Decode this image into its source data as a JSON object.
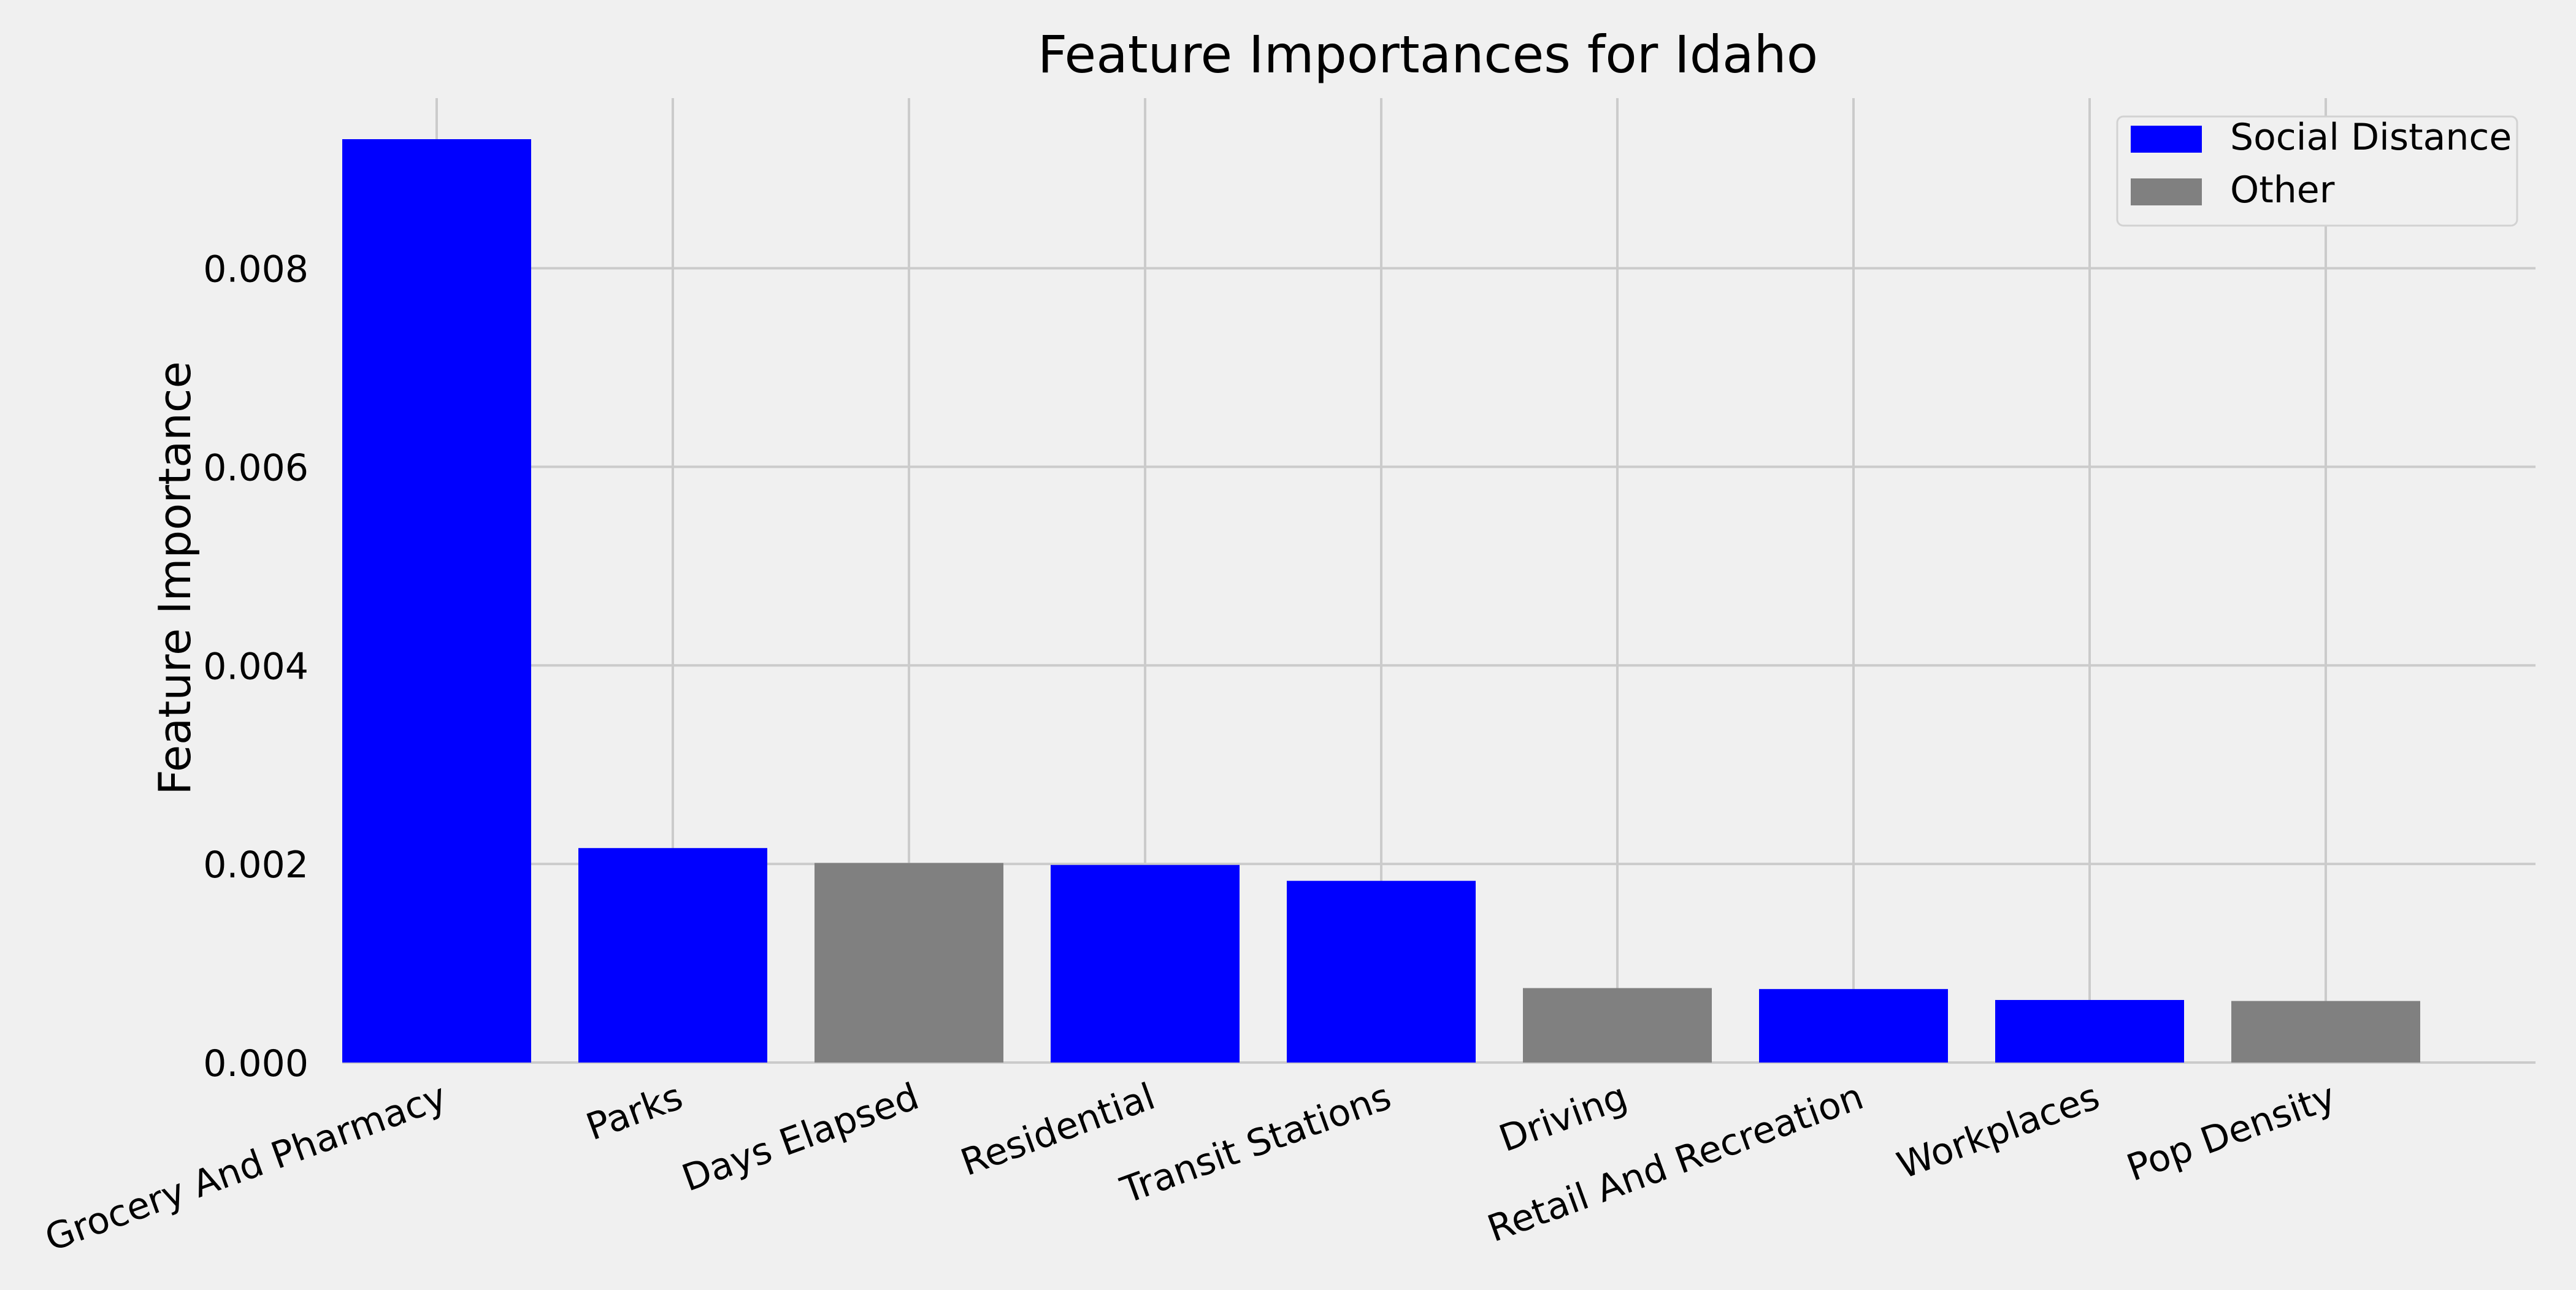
{
  "chart_data": {
    "type": "bar",
    "title": "Feature Importances for Idaho",
    "xlabel": "",
    "ylabel": "Feature Importance",
    "categories": [
      "Grocery And Pharmacy",
      "Parks",
      "Days Elapsed",
      "Residential",
      "Transit Stations",
      "Driving",
      "Retail And Recreation",
      "Workplaces",
      "Pop Density"
    ],
    "values": [
      0.0093,
      0.00216,
      0.00201,
      0.00199,
      0.00183,
      0.00075,
      0.00074,
      0.00063,
      0.00062
    ],
    "groups": [
      "Social Distance",
      "Social Distance",
      "Other",
      "Social Distance",
      "Social Distance",
      "Other",
      "Social Distance",
      "Social Distance",
      "Other"
    ],
    "ylim": [
      0,
      0.0097
    ],
    "yticks": [
      0.0,
      0.002,
      0.004,
      0.006,
      0.008
    ],
    "ytick_labels": [
      "0.000",
      "0.002",
      "0.004",
      "0.006",
      "0.008"
    ],
    "grid": true,
    "legend": {
      "placement": "top-right",
      "entries": [
        {
          "label": "Social Distance",
          "color": "#0000ff"
        },
        {
          "label": "Other",
          "color": "#808080"
        }
      ]
    },
    "colors": {
      "Social Distance": "#0000ff",
      "Other": "#808080",
      "background": "#f0f0f0",
      "grid": "#cbcbcb"
    }
  }
}
